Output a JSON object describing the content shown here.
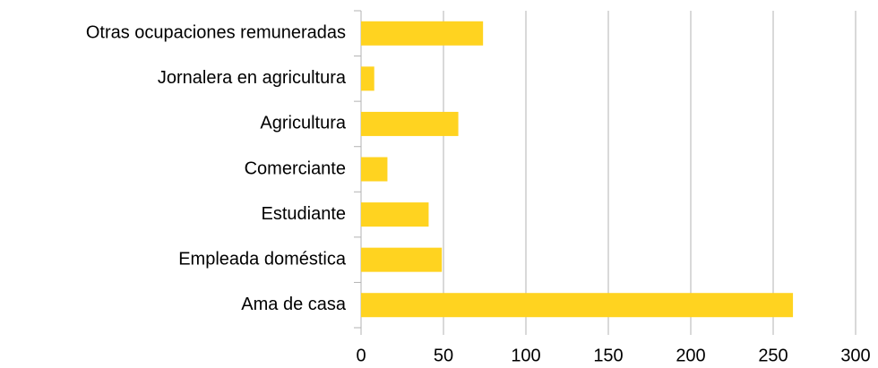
{
  "chart_data": {
    "type": "barh",
    "categories": [
      "Otras ocupaciones remuneradas",
      "Jornalera en agricultura",
      "Agricultura",
      "Comerciante",
      "Estudiante",
      "Empleada doméstica",
      "Ama de casa"
    ],
    "values": [
      74,
      8,
      59,
      16,
      41,
      49,
      262
    ],
    "color": "#ffd320",
    "xlim": [
      0,
      300
    ],
    "xticks": [
      0,
      50,
      100,
      150,
      200,
      250,
      300
    ],
    "grid": true
  }
}
